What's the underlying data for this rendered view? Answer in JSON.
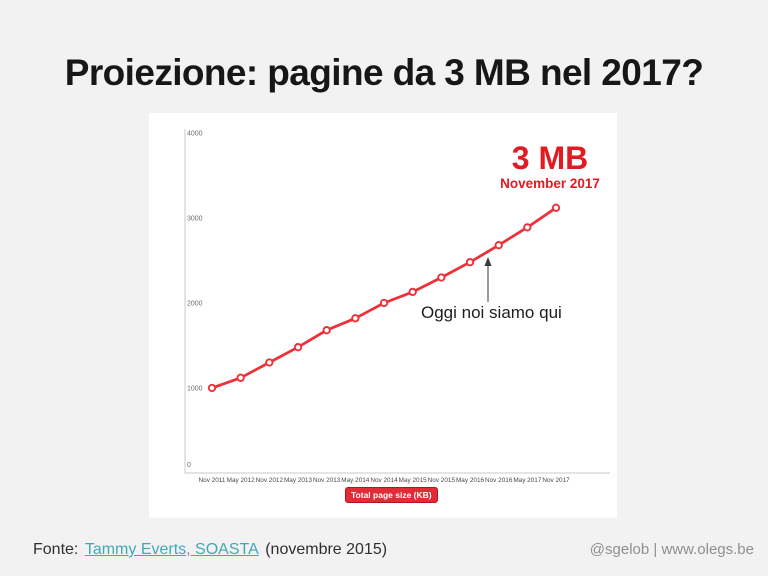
{
  "slide": {
    "title": "Proiezione: pagine da 3 MB nel 2017?",
    "background": "#f2f2f2"
  },
  "chart_data": {
    "type": "line",
    "title": "",
    "xlabel": "",
    "ylabel": "",
    "categories": [
      "Nov 2011",
      "May 2012",
      "Nov 2012",
      "May 2013",
      "Nov 2013",
      "May 2014",
      "Nov 2014",
      "May 2015",
      "Nov 2015",
      "May 2016",
      "Nov 2016",
      "May 2017",
      "Nov 2017"
    ],
    "series": [
      {
        "name": "Total page size (KB)",
        "values": [
          1000,
          1120,
          1300,
          1480,
          1680,
          1820,
          2000,
          2130,
          2300,
          2480,
          2680,
          2890,
          3120
        ]
      }
    ],
    "ylim": [
      0,
      4000
    ],
    "yticks": [
      0,
      1000,
      2000,
      3000,
      4000
    ],
    "grid": false,
    "marker": "open-circle",
    "line_color": "#ee3038",
    "axis_color": "#c8c8c8",
    "tick_color": "#6b6b6b",
    "legend": {
      "label": "Total page size (KB)",
      "position": "bottom",
      "bg": "#e12b36",
      "text_color": "#ffffff"
    }
  },
  "annotations": {
    "big_label": "3 MB",
    "big_sublabel": "November 2017",
    "big_label_color": "#e11b22",
    "today_note": "Oggi noi siamo qui",
    "arrow_color": "#3a3a3a"
  },
  "footer": {
    "source_prefix": "Fonte:",
    "source_link": "Tammy Everts, SOASTA",
    "source_suffix": "(novembre 2015)",
    "link_color": "#41a8b8",
    "credit": "@sgelob | www.olegs.be"
  }
}
